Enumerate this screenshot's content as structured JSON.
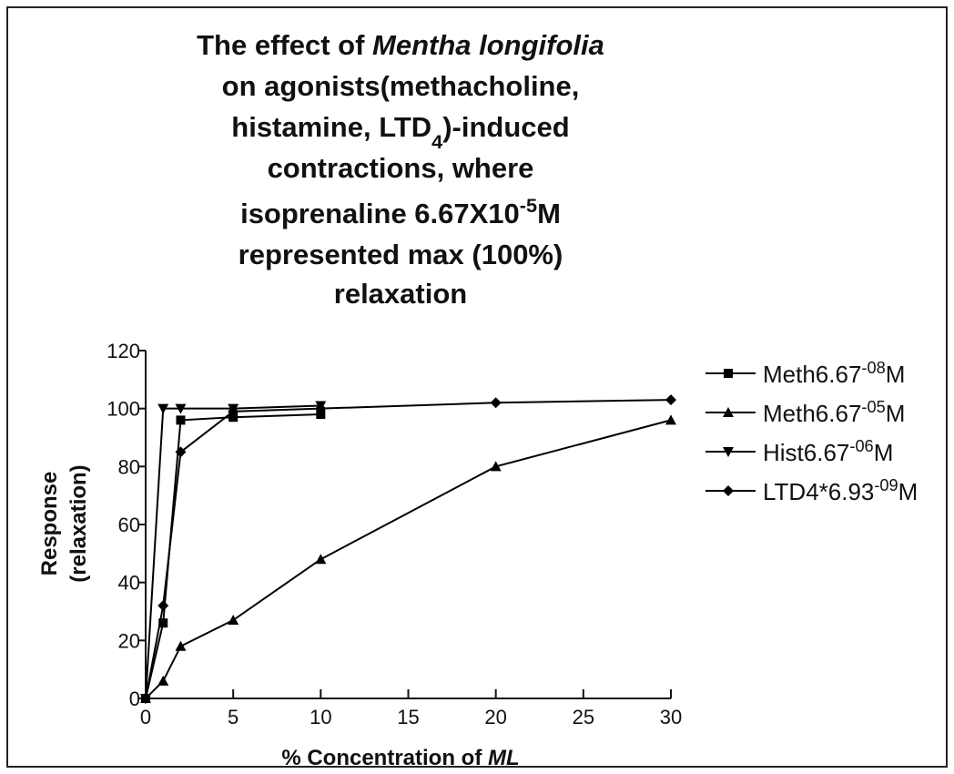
{
  "chart_data": {
    "type": "line",
    "title": [
      [
        {
          "text": "The effect of "
        },
        {
          "text": "Mentha longifolia",
          "style": "italic"
        }
      ],
      [
        {
          "text": "on agonists(methacholine,"
        }
      ],
      [
        {
          "text": "histamine, LTD"
        },
        {
          "text": "4",
          "style": "sub"
        },
        {
          "text": ")-induced"
        }
      ],
      [
        {
          "text": "contractions, where"
        }
      ],
      [
        {
          "text": "isoprenaline 6.67X10"
        },
        {
          "text": "-5",
          "style": "sup"
        },
        {
          "text": "M"
        }
      ],
      [
        {
          "text": "represented max (100%)"
        }
      ],
      [
        {
          "text": "relaxation"
        }
      ]
    ],
    "xlabel": [
      {
        "text": "% Concentration of "
      },
      {
        "text": "ML",
        "style": "italic"
      }
    ],
    "ylabel": [
      "Response",
      "(relaxation)"
    ],
    "xlim": [
      0,
      30
    ],
    "xticks": [
      0,
      5,
      10,
      15,
      20,
      25,
      30
    ],
    "ylim": [
      0,
      120
    ],
    "yticks": [
      0,
      20,
      40,
      60,
      80,
      100,
      120
    ],
    "series": [
      {
        "name": [
          {
            "text": "Meth6.67"
          },
          {
            "text": "-08",
            "style": "sup"
          },
          {
            "text": "M"
          }
        ],
        "color": "#000000",
        "marker": "square",
        "x": [
          0,
          1,
          2,
          5,
          10
        ],
        "values": [
          0,
          26,
          96,
          97,
          98
        ]
      },
      {
        "name": [
          {
            "text": "Meth6.67"
          },
          {
            "text": "-05",
            "style": "sup"
          },
          {
            "text": "M"
          }
        ],
        "color": "#000000",
        "marker": "triangle-up",
        "x": [
          0,
          1,
          2,
          5,
          10,
          20,
          30
        ],
        "values": [
          0,
          6,
          18,
          27,
          48,
          80,
          96
        ]
      },
      {
        "name": [
          {
            "text": "Hist6.67"
          },
          {
            "text": "-06",
            "style": "sup"
          },
          {
            "text": "M"
          }
        ],
        "color": "#000000",
        "marker": "triangle-down",
        "x": [
          0,
          1,
          2,
          5,
          10
        ],
        "values": [
          0,
          100,
          100,
          100,
          101
        ]
      },
      {
        "name": [
          {
            "text": "LTD4*6.93"
          },
          {
            "text": "-09",
            "style": "sup"
          },
          {
            "text": "M"
          }
        ],
        "color": "#000000",
        "marker": "diamond",
        "x": [
          0,
          1,
          2,
          5,
          10,
          20,
          30
        ],
        "values": [
          0,
          32,
          85,
          99,
          100,
          102,
          103
        ]
      }
    ]
  }
}
